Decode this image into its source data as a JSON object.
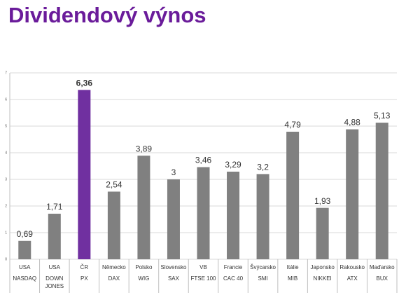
{
  "chart_data": {
    "type": "bar",
    "title": "Dividendový výnos",
    "categories": [
      [
        "USA",
        "NASDAQ"
      ],
      [
        "USA",
        "DOWN JONES"
      ],
      [
        "ČR",
        "PX"
      ],
      [
        "Německo",
        "DAX"
      ],
      [
        "Polsko",
        "WIG"
      ],
      [
        "Slovensko",
        "SAX"
      ],
      [
        "VB",
        "FTSE 100"
      ],
      [
        "Francie",
        "CAC 40"
      ],
      [
        "Švýcarsko",
        "SMI"
      ],
      [
        "Itálie",
        "MIB"
      ],
      [
        "Japonsko",
        "NIKKEI"
      ],
      [
        "Rakousko",
        "ATX"
      ],
      [
        "Maďarsko",
        "BUX"
      ]
    ],
    "values": [
      0.69,
      1.71,
      6.36,
      2.54,
      3.89,
      3,
      3.46,
      3.29,
      3.2,
      4.79,
      1.93,
      4.88,
      5.13
    ],
    "value_labels": [
      "0,69",
      "1,71",
      "6,36",
      "2,54",
      "3,89",
      "3",
      "3,46",
      "3,29",
      "3,2",
      "4,79",
      "1,93",
      "4,88",
      "5,13"
    ],
    "colors": [
      "#808080",
      "#808080",
      "#7030a0",
      "#808080",
      "#808080",
      "#808080",
      "#808080",
      "#808080",
      "#808080",
      "#808080",
      "#808080",
      "#808080",
      "#808080"
    ],
    "ylim": [
      0,
      7
    ],
    "yticks": [
      0,
      1,
      2,
      3,
      4,
      5,
      6,
      7
    ],
    "grid": true
  }
}
